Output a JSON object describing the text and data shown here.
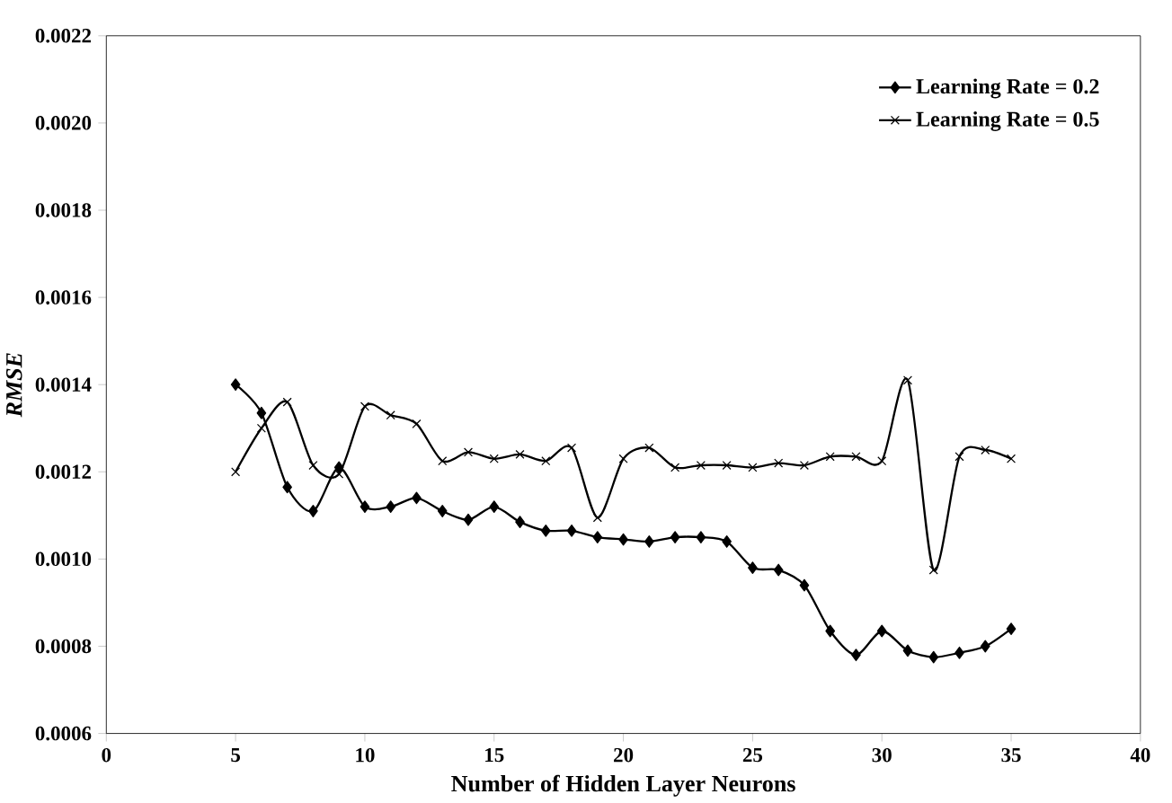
{
  "chart_data": {
    "type": "line",
    "xlabel": "Number of Hidden Layer Neurons",
    "ylabel": "RMSE",
    "x": [
      5,
      6,
      7,
      8,
      9,
      10,
      11,
      12,
      13,
      14,
      15,
      16,
      17,
      18,
      19,
      20,
      21,
      22,
      23,
      24,
      25,
      26,
      27,
      28,
      29,
      30,
      31,
      32,
      33,
      34,
      35
    ],
    "series": [
      {
        "name": "Learning Rate = 0.2",
        "color": "#000000",
        "marker": "diamond",
        "values": [
          0.0014,
          0.001335,
          0.001165,
          0.00111,
          0.00121,
          0.00112,
          0.00112,
          0.00114,
          0.00111,
          0.00109,
          0.00112,
          0.001085,
          0.001065,
          0.001065,
          0.00105,
          0.001045,
          0.00104,
          0.00105,
          0.00105,
          0.00104,
          0.00098,
          0.000975,
          0.00094,
          0.000835,
          0.00078,
          0.000835,
          0.00079,
          0.000775,
          0.000785,
          0.0008,
          0.00084
        ]
      },
      {
        "name": "Learning Rate = 0.5",
        "color": "#000000",
        "marker": "cross",
        "values": [
          0.0012,
          0.0013,
          0.00136,
          0.001215,
          0.001195,
          0.00135,
          0.00133,
          0.00131,
          0.001225,
          0.001245,
          0.00123,
          0.00124,
          0.001225,
          0.001255,
          0.001095,
          0.00123,
          0.001255,
          0.00121,
          0.001215,
          0.001215,
          0.00121,
          0.00122,
          0.001215,
          0.001235,
          0.001235,
          0.001225,
          0.00141,
          0.000975,
          0.001235,
          0.00125,
          0.00123
        ]
      }
    ],
    "xlim": [
      0,
      40
    ],
    "xticks": [
      0,
      5,
      10,
      15,
      20,
      25,
      30,
      35,
      40
    ],
    "ylim": [
      0.0006,
      0.0022
    ],
    "yticks": [
      {
        "value": 0.0006,
        "label": "0.0006"
      },
      {
        "value": 0.0008,
        "label": "0.0008"
      },
      {
        "value": 0.001,
        "label": "0.0010"
      },
      {
        "value": 0.0012,
        "label": "0.0012"
      },
      {
        "value": 0.0014,
        "label": "0.0014"
      },
      {
        "value": 0.0016,
        "label": "0.0016"
      },
      {
        "value": 0.0018,
        "label": "0.0018"
      },
      {
        "value": 0.002,
        "label": "0.0020"
      },
      {
        "value": 0.0022,
        "label": "0.0022"
      }
    ],
    "grid": false,
    "legend": "top right",
    "line_style": "solid"
  }
}
